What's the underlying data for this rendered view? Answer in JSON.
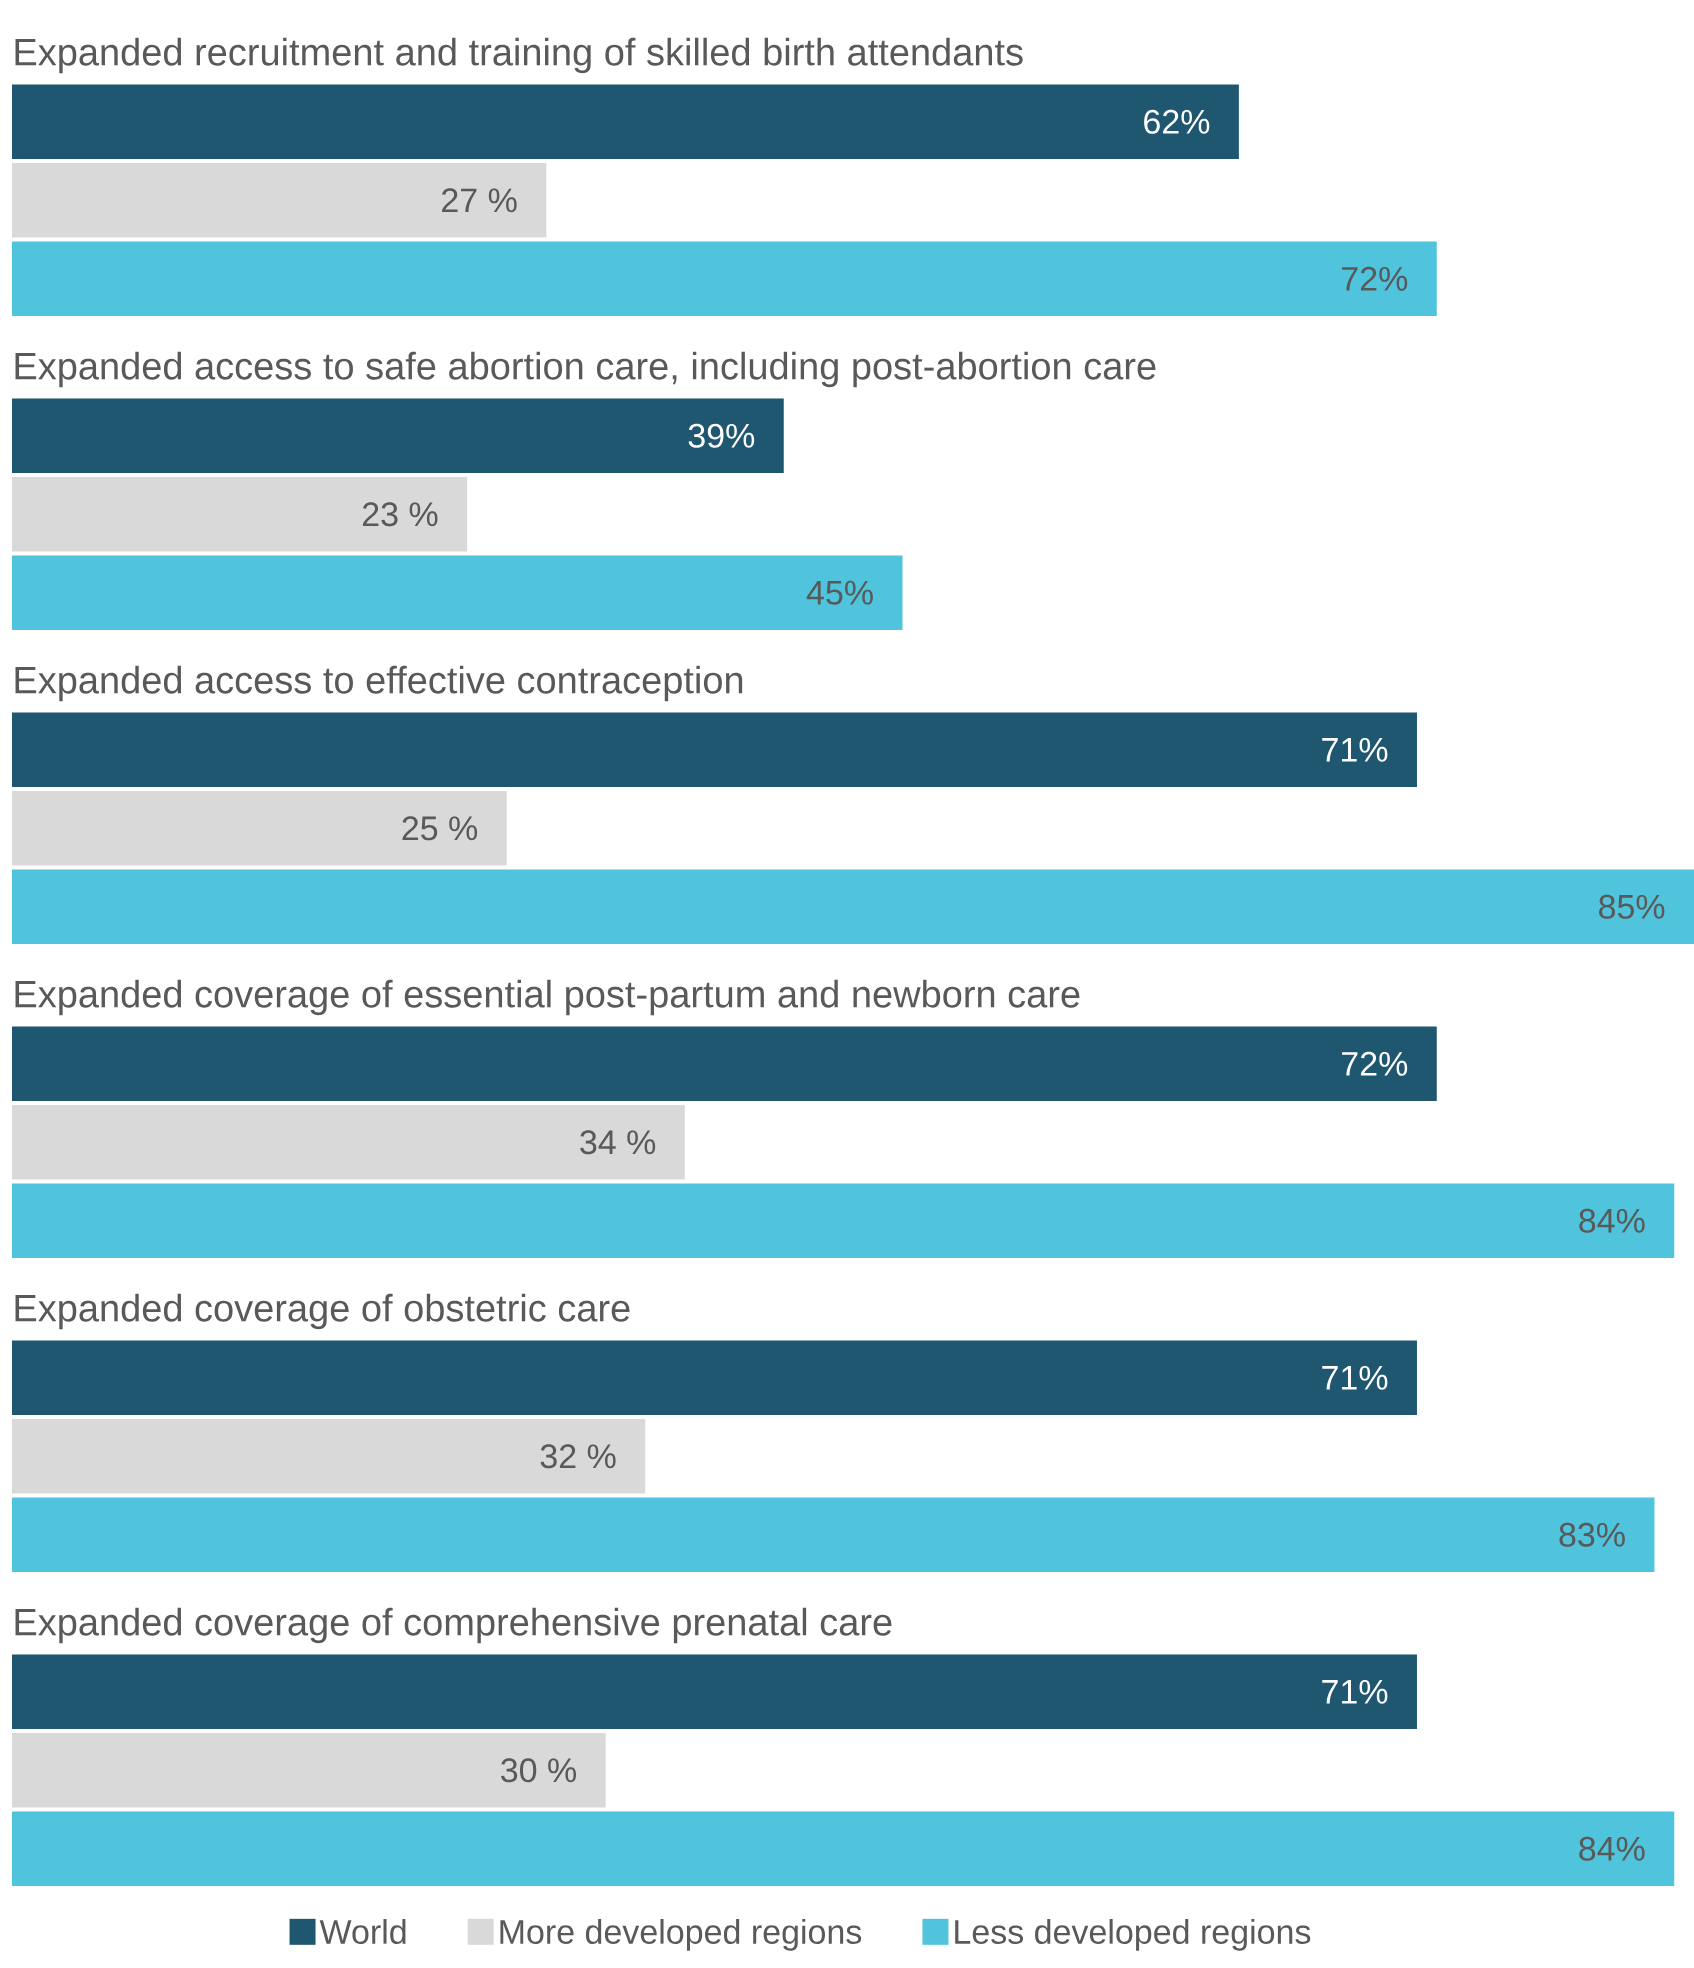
{
  "chart_data": {
    "type": "bar",
    "orientation": "horizontal",
    "legend": "bottom",
    "categories": [
      "Expanded recruitment and training of skilled birth attendants",
      "Expanded access to safe abortion care, including post-abortion care",
      "Expanded access to effective contraception",
      "Expanded coverage of essential post-partum and newborn care",
      "Expanded coverage of obstetric care",
      "Expanded coverage of comprehensive prenatal care"
    ],
    "series": [
      {
        "name": "World",
        "color": "#1f5670",
        "values": [
          62,
          39,
          71,
          72,
          71,
          71
        ],
        "value_labels": [
          "62%",
          "39%",
          "71%",
          "72%",
          "71%",
          "71%"
        ]
      },
      {
        "name": "More developed regions",
        "color": "#d9d9d9",
        "values": [
          27,
          23,
          25,
          34,
          32,
          30
        ],
        "value_labels": [
          "27 %",
          "23 %",
          "25 %",
          "34 %",
          "32 %",
          "30 %"
        ]
      },
      {
        "name": "Less developed regions",
        "color": "#4fc4dc",
        "values": [
          72,
          45,
          85,
          84,
          83,
          84
        ],
        "value_labels": [
          "72%",
          "45%",
          "85%",
          "84%",
          "83%",
          "84%"
        ]
      }
    ]
  }
}
